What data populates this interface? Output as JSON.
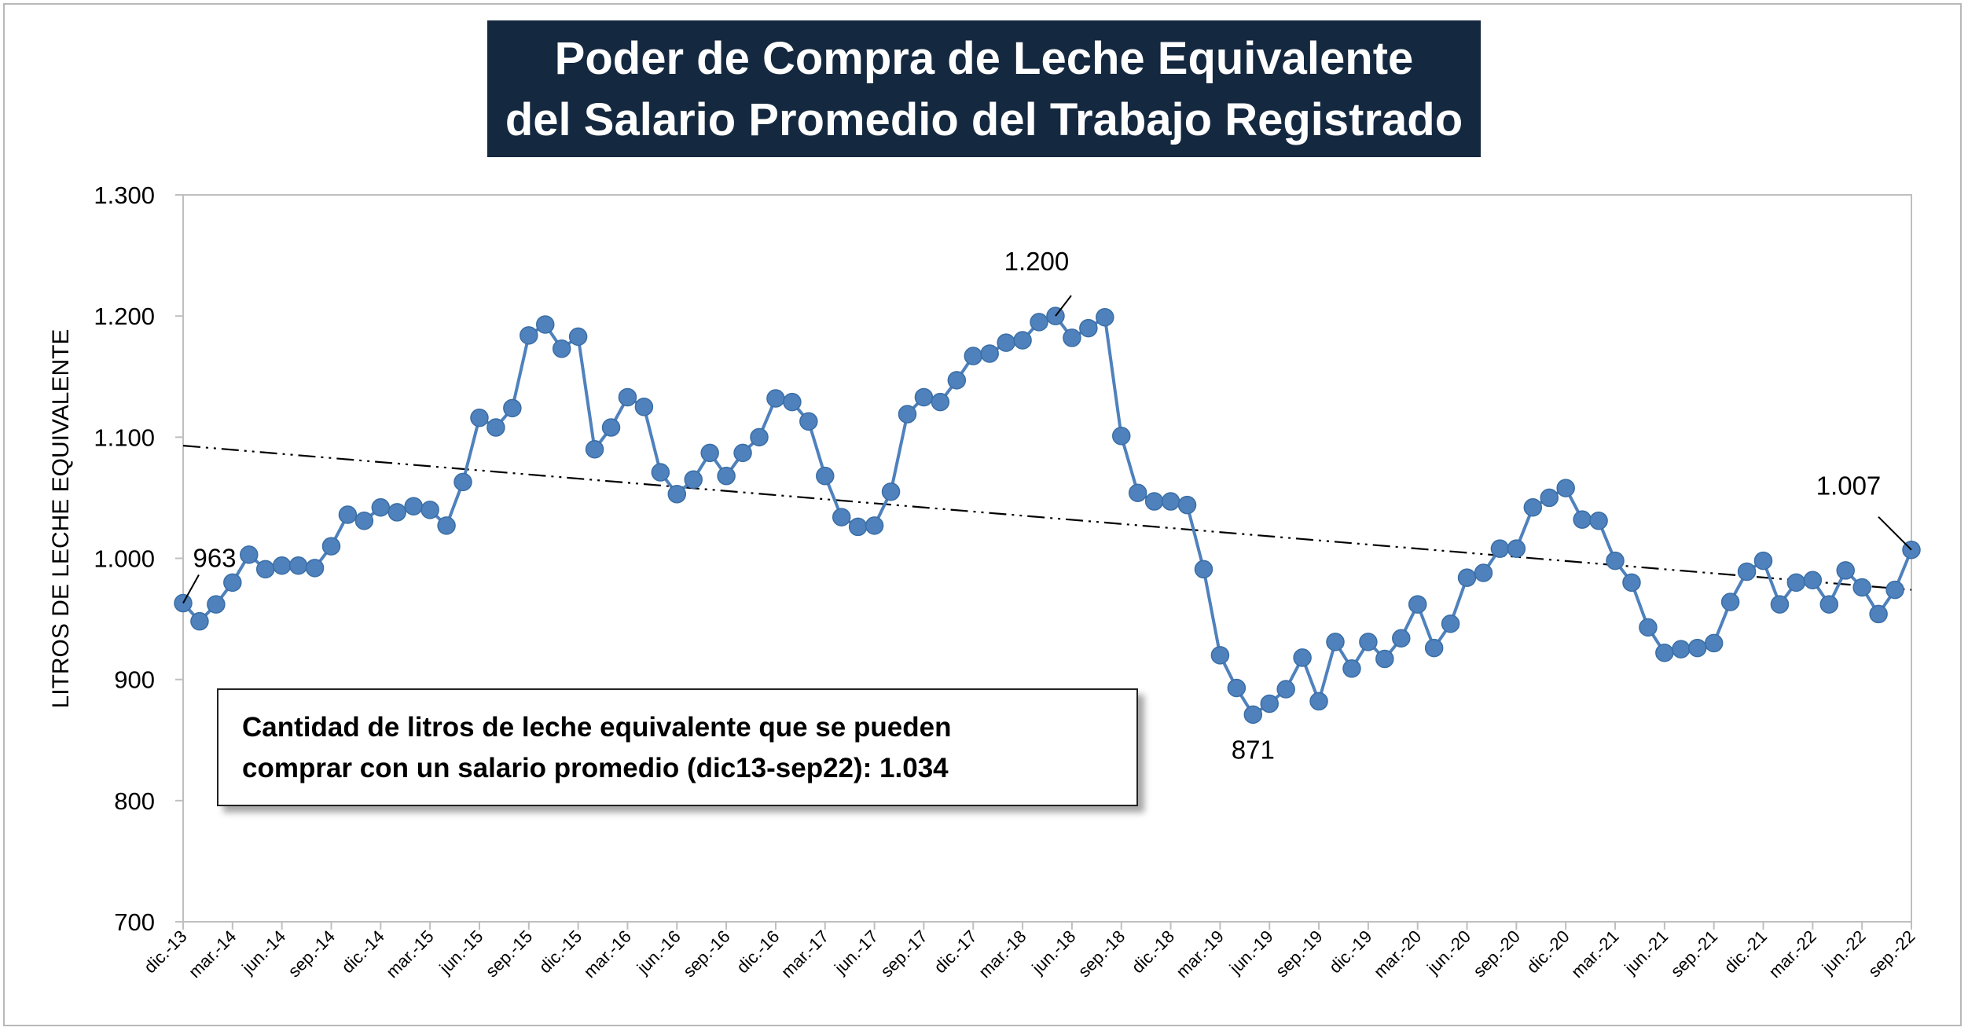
{
  "title": {
    "line1": "Poder de Compra de Leche Equivalente",
    "line2": "del Salario Promedio del Trabajo Registrado"
  },
  "note": {
    "line1": "Cantidad de litros de leche equivalente que se pueden",
    "line2": "comprar con un salario promedio (dic13-sep22): 1.034"
  },
  "colors": {
    "series": "#4f81bd",
    "marker": "#4f81bd",
    "trend": "#000000",
    "title_bg": "#14283f"
  },
  "chart_data": {
    "type": "line",
    "ylabel": "LITROS DE LECHE EQUIVALENTE",
    "xlabel": "",
    "ylim": [
      700,
      1300
    ],
    "y_ticks": [
      700,
      800,
      900,
      1000,
      1100,
      1200,
      1300
    ],
    "y_tick_labels": [
      "700",
      "800",
      "900",
      "1.000",
      "1.100",
      "1.200",
      "1.300"
    ],
    "x_tick_labels": [
      "dic.-13",
      "mar.-14",
      "jun.-14",
      "sep.-14",
      "dic.-14",
      "mar.-15",
      "jun.-15",
      "sep.-15",
      "dic.-15",
      "mar.-16",
      "jun.-16",
      "sep.-16",
      "dic.-16",
      "mar.-17",
      "jun.-17",
      "sep.-17",
      "dic.-17",
      "mar.-18",
      "jun.-18",
      "sep.-18",
      "dic.-18",
      "mar.-19",
      "jun.-19",
      "sep.-19",
      "dic.-19",
      "mar.-20",
      "jun.-20",
      "sep.-20",
      "dic.-20",
      "mar.-21",
      "jun.-21",
      "sep.-21",
      "dic.-21",
      "mar.-22",
      "jun.-22",
      "sep.-22"
    ],
    "x_tick_every": 3,
    "grid": false,
    "legend": "none",
    "series": [
      {
        "values": [
          963,
          948,
          962,
          980,
          1003,
          991,
          994,
          994,
          992,
          1010,
          1036,
          1031,
          1042,
          1038,
          1043,
          1040,
          1027,
          1063,
          1116,
          1108,
          1124,
          1184,
          1193,
          1173,
          1183,
          1090,
          1108,
          1133,
          1125,
          1071,
          1053,
          1065,
          1087,
          1068,
          1087,
          1100,
          1132,
          1129,
          1113,
          1068,
          1034,
          1026,
          1027,
          1055,
          1119,
          1133,
          1129,
          1147,
          1167,
          1169,
          1178,
          1180,
          1195,
          1200,
          1182,
          1190,
          1199,
          1101,
          1054,
          1047,
          1047,
          1044,
          991,
          920,
          893,
          871,
          880,
          892,
          918,
          882,
          931,
          909,
          931,
          917,
          934,
          962,
          926,
          946,
          984,
          988,
          1008,
          1008,
          1042,
          1050,
          1058,
          1032,
          1031,
          998,
          980,
          943,
          922,
          925,
          926,
          930,
          964,
          989,
          998,
          962,
          980,
          982,
          962,
          990,
          976,
          954,
          974,
          1007
        ]
      }
    ],
    "trendline": {
      "type": "linear",
      "start": 1093,
      "end": 974
    },
    "annotations": [
      {
        "text": "963",
        "index": 0
      },
      {
        "text": "1.200",
        "index": 53
      },
      {
        "text": "871",
        "index": 65
      },
      {
        "text": "1.007",
        "index": 105
      }
    ]
  }
}
